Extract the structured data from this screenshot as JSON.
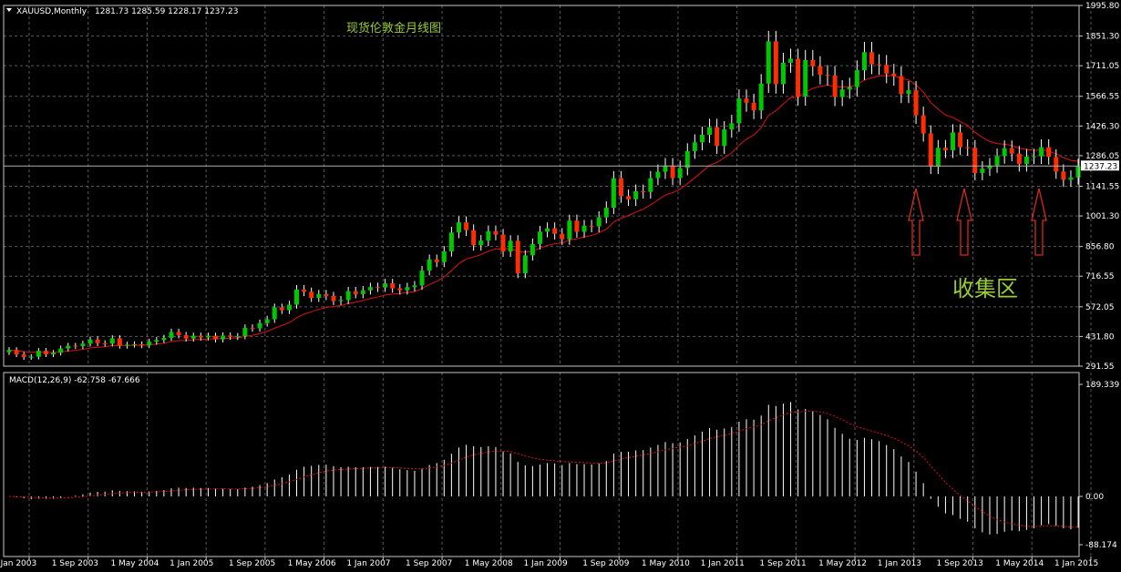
{
  "header": {
    "symbol": "XAUUSD,Monthly",
    "ohlc": "1281.73 1285.59 1228.17 1237.23"
  },
  "annotations": {
    "title_cn": "现货伦敦金月线图",
    "zone_cn": "收集区"
  },
  "price_panel": {
    "current_price_label": "1237.23",
    "y_ticks": [
      "1995.80",
      "1851.30",
      "1711.05",
      "1566.55",
      "1426.30",
      "1286.05",
      "1141.55",
      "1001.30",
      "856.80",
      "716.55",
      "572.05",
      "431.80",
      "291.55"
    ]
  },
  "macd_panel": {
    "label": "MACD(12,26,9) -62.758 -67.666",
    "y_ticks": [
      "189.339",
      "0.00",
      "-88.174"
    ]
  },
  "x_ticks": [
    "1 Jan 2003",
    "1 Sep 2003",
    "1 May 2004",
    "1 Jan 2005",
    "1 Sep 2005",
    "1 May 2006",
    "1 Jan 2007",
    "1 Sep 2007",
    "1 May 2008",
    "1 Jan 2009",
    "1 Sep 2009",
    "1 May 2010",
    "1 Jan 2011",
    "1 Sep 2011",
    "1 May 2012",
    "1 Jan 2013",
    "1 Sep 2013",
    "1 May 2014",
    "1 Jan 2015"
  ],
  "colors": {
    "background": "#000000",
    "grid": "#5a5a5a",
    "bull": "#00c800",
    "bear": "#ff2d00",
    "ma": "#e01010",
    "macd_hist": "#ffffff",
    "signal": "#e01010",
    "annotation": "#9acd32",
    "arrow": "#d62a1a"
  },
  "chart_data": {
    "type": "candlestick",
    "timeframe": "Monthly",
    "symbol": "XAUUSD",
    "start": "2003-01",
    "ylim": [
      291.55,
      1995.8
    ],
    "closes": [
      368,
      347,
      334,
      336,
      364,
      347,
      355,
      375,
      388,
      386,
      398,
      417,
      400,
      398,
      423,
      388,
      393,
      395,
      390,
      407,
      415,
      425,
      453,
      438,
      422,
      435,
      427,
      435,
      418,
      436,
      430,
      433,
      473,
      470,
      495,
      513,
      569,
      556,
      582,
      654,
      643,
      614,
      632,
      623,
      599,
      604,
      646,
      632,
      650,
      665,
      663,
      683,
      659,
      650,
      665,
      673,
      743,
      795,
      783,
      834,
      923,
      971,
      934,
      863,
      885,
      929,
      913,
      833,
      884,
      730,
      815,
      869,
      927,
      943,
      917,
      891,
      979,
      926,
      955,
      952,
      995,
      1040,
      1180,
      1095,
      1080,
      1118,
      1115,
      1180,
      1210,
      1240,
      1180,
      1228,
      1308,
      1349,
      1385,
      1421,
      1332,
      1410,
      1439,
      1556,
      1536,
      1500,
      1627,
      1826,
      1624,
      1725,
      1744,
      1565,
      1738,
      1709,
      1668,
      1664,
      1563,
      1599,
      1610,
      1690,
      1775,
      1718,
      1715,
      1674,
      1662,
      1578,
      1595,
      1477,
      1391,
      1234,
      1323,
      1312,
      1396,
      1326,
      1323,
      1204,
      1225,
      1240,
      1284,
      1321,
      1296,
      1246,
      1282,
      1283,
      1326,
      1280,
      1211,
      1172,
      1183,
      1237
    ],
    "cursor_price": 1237.23,
    "moving_average": "smoothed close (red line)",
    "macd": {
      "params": [
        12,
        26,
        9
      ],
      "main": -62.758,
      "signal": -67.666,
      "ylim": [
        -88.174,
        189.339
      ]
    },
    "annotations": [
      "现货伦敦金月线图",
      "收集区"
    ]
  }
}
